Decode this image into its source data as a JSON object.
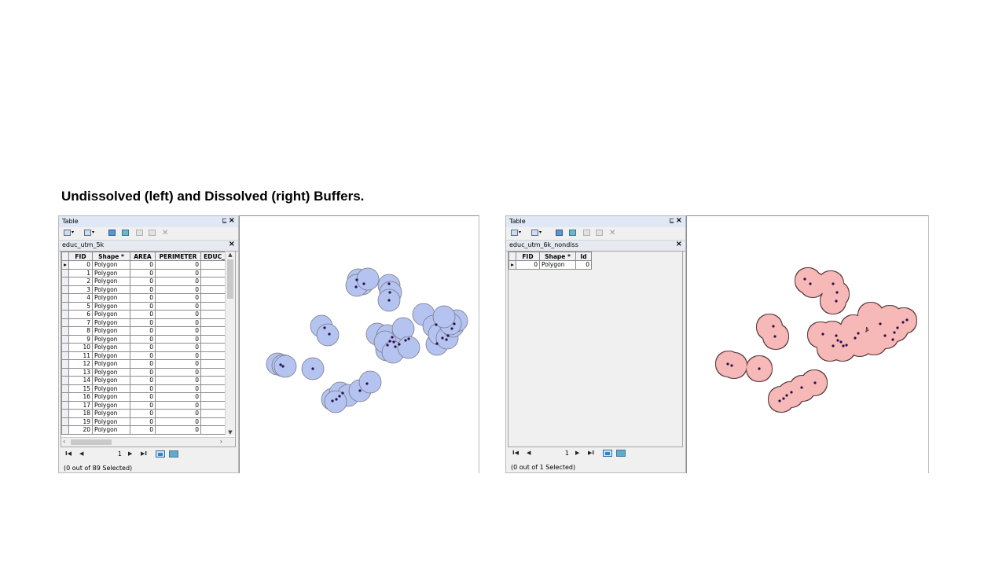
{
  "title": "Undissolved (left) and Dissolved (right) Buffers.",
  "left": {
    "window_title": "Table",
    "pin": "⊑",
    "close": "×",
    "tab_name": "educ_utm_5k",
    "columns": [
      "FID",
      "Shape *",
      "AREA",
      "PERIMETER",
      "EDUC_"
    ],
    "rows": [
      {
        "fid": "0",
        "shape": "Polygon",
        "area": "0",
        "perimeter": "0"
      },
      {
        "fid": "1",
        "shape": "Polygon",
        "area": "0",
        "perimeter": "0"
      },
      {
        "fid": "2",
        "shape": "Polygon",
        "area": "0",
        "perimeter": "0"
      },
      {
        "fid": "3",
        "shape": "Polygon",
        "area": "0",
        "perimeter": "0"
      },
      {
        "fid": "4",
        "shape": "Polygon",
        "area": "0",
        "perimeter": "0"
      },
      {
        "fid": "5",
        "shape": "Polygon",
        "area": "0",
        "perimeter": "0"
      },
      {
        "fid": "6",
        "shape": "Polygon",
        "area": "0",
        "perimeter": "0"
      },
      {
        "fid": "7",
        "shape": "Polygon",
        "area": "0",
        "perimeter": "0"
      },
      {
        "fid": "8",
        "shape": "Polygon",
        "area": "0",
        "perimeter": "0"
      },
      {
        "fid": "9",
        "shape": "Polygon",
        "area": "0",
        "perimeter": "0"
      },
      {
        "fid": "10",
        "shape": "Polygon",
        "area": "0",
        "perimeter": "0"
      },
      {
        "fid": "11",
        "shape": "Polygon",
        "area": "0",
        "perimeter": "0"
      },
      {
        "fid": "12",
        "shape": "Polygon",
        "area": "0",
        "perimeter": "0"
      },
      {
        "fid": "13",
        "shape": "Polygon",
        "area": "0",
        "perimeter": "0"
      },
      {
        "fid": "14",
        "shape": "Polygon",
        "area": "0",
        "perimeter": "0"
      },
      {
        "fid": "15",
        "shape": "Polygon",
        "area": "0",
        "perimeter": "0"
      },
      {
        "fid": "16",
        "shape": "Polygon",
        "area": "0",
        "perimeter": "0"
      },
      {
        "fid": "17",
        "shape": "Polygon",
        "area": "0",
        "perimeter": "0"
      },
      {
        "fid": "18",
        "shape": "Polygon",
        "area": "0",
        "perimeter": "0"
      },
      {
        "fid": "19",
        "shape": "Polygon",
        "area": "0",
        "perimeter": "0"
      },
      {
        "fid": "20",
        "shape": "Polygon",
        "area": "0",
        "perimeter": "0"
      }
    ],
    "page_number": "1",
    "status": "(0 out of 89 Selected)",
    "buffer_fill": "#b4c3f0",
    "buffer_stroke": "#7a7a88",
    "point_color": "#2a1048"
  },
  "right": {
    "window_title": "Table",
    "pin": "⊑",
    "close": "×",
    "tab_name": "educ_utm_6k_nondiss",
    "columns": [
      "FID",
      "Shape *",
      "Id"
    ],
    "rows": [
      {
        "fid": "0",
        "shape": "Polygon",
        "id": "0"
      }
    ],
    "page_number": "1",
    "status": "(0 out of 1 Selected)",
    "buffer_fill": "#f7b8b8",
    "buffer_stroke": "#5a3a3a",
    "point_color": "#2a1048"
  }
}
